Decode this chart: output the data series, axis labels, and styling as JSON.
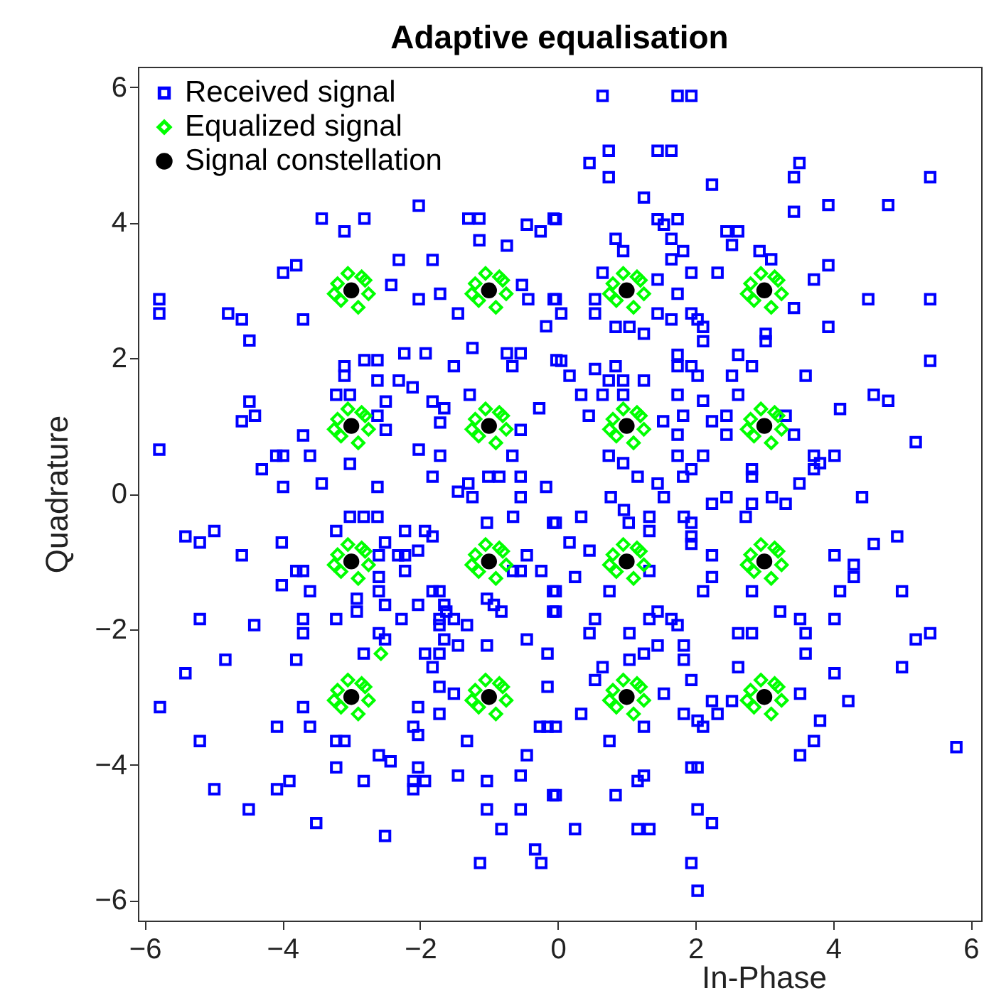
{
  "chart_data": {
    "type": "scatter",
    "title": "Adaptive equalisation",
    "xlabel": "In-Phase",
    "ylabel": "Quadrature",
    "xlim": [
      -6.1,
      6.15
    ],
    "ylim": [
      -6.3,
      6.3
    ],
    "xticks": [
      -6,
      -4,
      -2,
      0,
      2,
      4,
      6
    ],
    "yticks": [
      -6,
      -4,
      -2,
      0,
      2,
      4,
      6
    ],
    "grid": false,
    "legend": "top left",
    "series": [
      {
        "name": "Received signal",
        "color": "#0000ff",
        "marker": "square",
        "x": [
          -3.43,
          -2.81,
          -3.1,
          -2.02,
          -1.3,
          -1.14,
          -1.14,
          -0.74,
          -0.45,
          -0.25,
          -0.06,
          -3.99,
          -3.8,
          -2.31,
          -1.82,
          -5.79,
          -5.79,
          -4.79,
          -4.59,
          -3.7,
          -4.48,
          -2.42,
          -2.02,
          -1.71,
          -1.45,
          -0.43,
          -0.06,
          -0.17,
          -0.52,
          -2.23,
          -1.92,
          -1.24,
          -0.74,
          -0.54,
          -1.51,
          -0.66,
          -0.02,
          -3.1,
          -2.81,
          -2.62,
          -3.1,
          -2.62,
          -2.31,
          -2.11,
          -3.22,
          -3.02,
          -4.48,
          -2.5,
          -1.82,
          -1.65,
          -1.28,
          -0.27,
          -4.4,
          -4.59,
          -2.62,
          -2.5,
          -1.71,
          -3.7,
          -5.79,
          -4.09,
          -3.99,
          -3.6,
          -4.3,
          -3.02,
          -2.02,
          -1.71,
          -0.66,
          -0.54,
          -3.99,
          -3.43,
          -2.62,
          -1.82,
          -1.3,
          -1.01,
          -0.85,
          -0.54,
          -0.17,
          0.65,
          1.74,
          1.94,
          0.74,
          1.45,
          1.65,
          0.46,
          0.74,
          2.24,
          3.51,
          3.43,
          5.41,
          1.25,
          3.93,
          4.8,
          3.43,
          -0.03,
          1.45,
          1.74,
          1.54,
          2.45,
          2.62,
          0.84,
          1.65,
          2.53,
          0.95,
          1.82,
          2.93,
          3.1,
          1.65,
          3.93,
          0.65,
          1.94,
          2.32,
          3.72,
          1.45,
          -0.03,
          0.05,
          0.54,
          0.54,
          1.45,
          1.65,
          1.74,
          1.94,
          2.03,
          2.11,
          0.84,
          1.04,
          1.25,
          2.11,
          3.02,
          3.02,
          3.43,
          3.93,
          4.51,
          5.41,
          5.41,
          0.05,
          0.17,
          0.54,
          0.84,
          0.74,
          0.95,
          1.25,
          1.74,
          1.74,
          1.94,
          2.03,
          2.53,
          2.62,
          2.82,
          3.6,
          0.34,
          0.65,
          0.95,
          1.74,
          2.11,
          2.62,
          4.59,
          4.8,
          4.1,
          0.45,
          1.53,
          1.82,
          2.45,
          2.24,
          3.31,
          3.43,
          2.45,
          1.74,
          5.2,
          0.74,
          1.74,
          2.11,
          3.72,
          4.02,
          3.81,
          0.95,
          1.94,
          2.82,
          3.72,
          1.16,
          1.45,
          1.82,
          2.82,
          3.51,
          -5.41,
          -5.2,
          -4.99,
          -4.59,
          -4.01,
          -3.22,
          -3.02,
          -2.82,
          -2.62,
          -2.22,
          -1.93,
          -1.82,
          -1.03,
          -0.65,
          -0.54,
          -1.45,
          -1.24,
          -0.07,
          -2.51,
          -2.6,
          -2.32,
          -2.22,
          -2.03,
          -2.22,
          -0.45,
          -0.65,
          -0.54,
          -0.24,
          -3.8,
          -3.7,
          -4.01,
          -3.6,
          -2.6,
          -2.6,
          -2.92,
          -2.92,
          -2.51,
          -2.03,
          -1.82,
          -1.72,
          -1.65,
          -1.62,
          -2.27,
          -1.72,
          -1.51,
          -1.32,
          -1.72,
          -1.03,
          -0.93,
          -0.82,
          -0.07,
          -0.07,
          -5.2,
          -4.41,
          -3.7,
          -3.7,
          -3.22,
          -2.6,
          -2.51,
          -1.65,
          -1.45,
          -1.03,
          -0.45,
          -4.83,
          -3.8,
          -2.82,
          -1.93,
          -1.72,
          -1.82,
          -0.15,
          -5.41,
          -5.78,
          -3.7,
          -2.03,
          -1.72,
          -1.72,
          -1.51,
          -0.15,
          -4.08,
          -3.6,
          -2.1,
          -2.03,
          -1.32,
          -0.26,
          -0.15,
          -5.2,
          -3.22,
          -3.1,
          -2.6,
          -2.43,
          -3.22,
          -2.03,
          -0.45,
          -4.99,
          -4.08,
          -3.9,
          -2.82,
          -2.1,
          -1.93,
          -2.1,
          -1.45,
          -1.03,
          -0.54,
          -0.07,
          -4.49,
          -3.51,
          -2.51,
          -1.03,
          -0.54,
          -0.82,
          -0.33,
          -0.24,
          -1.13,
          0.77,
          1.54,
          2.24,
          2.45,
          2.82,
          3.11,
          3.31,
          4.42,
          -0.03,
          0.34,
          0.96,
          1.03,
          1.33,
          1.33,
          1.83,
          1.94,
          1.94,
          1.94,
          2.73,
          0.17,
          0.46,
          1.33,
          2.24,
          2.24,
          4.02,
          4.3,
          4.3,
          4.59,
          4.93,
          0.25,
          -0.03,
          0.75,
          2.11,
          2.82,
          4.1,
          5,
          -0.03,
          0.54,
          0.46,
          1.04,
          1.33,
          1.45,
          1.65,
          1.74,
          3.23,
          3.52,
          4.02,
          2.62,
          2.82,
          3.6,
          5.2,
          5.41,
          1.04,
          1.25,
          1.45,
          1.83,
          1.83,
          3.6,
          0.65,
          2.62,
          4.02,
          5,
          0.54,
          1.94,
          1.54,
          2.24,
          2.53,
          3.52,
          4.22,
          0.34,
          1.83,
          2.03,
          2.11,
          2.32,
          1.25,
          -0.03,
          0.75,
          3.81,
          3.72,
          3.52,
          5.79,
          1.94,
          2.03,
          1.25,
          1.16,
          -0.03,
          0.84,
          0.25,
          1.16,
          1.33,
          2.03,
          2.24,
          1.94,
          2.03
        ],
        "values": [
          4.06,
          4.06,
          3.87,
          4.25,
          4.06,
          4.06,
          3.74,
          3.66,
          3.97,
          3.87,
          4.06,
          3.26,
          3.37,
          3.45,
          3.45,
          2.87,
          2.66,
          2.66,
          2.57,
          2.57,
          2.26,
          3.08,
          2.87,
          2.95,
          2.66,
          2.87,
          2.87,
          2.47,
          3.08,
          2.07,
          2.07,
          2.15,
          2.07,
          2.07,
          1.88,
          1.88,
          1.97,
          1.88,
          1.97,
          1.97,
          1.74,
          1.67,
          1.67,
          1.57,
          1.46,
          1.46,
          1.36,
          1.36,
          1.36,
          1.26,
          1.46,
          1.26,
          1.15,
          1.07,
          1.15,
          0.94,
          1.05,
          0.86,
          0.65,
          0.56,
          0.56,
          0.56,
          0.36,
          0.44,
          0.65,
          0.56,
          0.56,
          0.94,
          0.1,
          0.15,
          0.1,
          0.25,
          0.15,
          0.25,
          0.25,
          0.25,
          0.1,
          5.87,
          5.87,
          5.87,
          5.06,
          5.06,
          5.06,
          4.88,
          4.67,
          4.56,
          4.88,
          4.67,
          4.67,
          4.37,
          4.26,
          4.26,
          4.16,
          4.05,
          4.05,
          4.05,
          3.97,
          3.87,
          3.87,
          3.76,
          3.76,
          3.67,
          3.58,
          3.58,
          3.58,
          3.46,
          3.46,
          3.37,
          3.26,
          3.26,
          3.26,
          3.16,
          3.16,
          2.87,
          2.66,
          2.87,
          2.66,
          2.66,
          2.57,
          2.95,
          2.66,
          2.57,
          2.46,
          2.46,
          2.46,
          2.36,
          2.25,
          2.36,
          2.25,
          2.74,
          2.46,
          2.87,
          2.87,
          1.96,
          1.96,
          1.74,
          1.84,
          1.88,
          1.67,
          1.67,
          1.67,
          2.05,
          1.88,
          1.88,
          1.74,
          1.74,
          2.05,
          1.88,
          1.74,
          1.46,
          1.46,
          1.46,
          1.46,
          1.37,
          1.46,
          1.46,
          1.37,
          1.25,
          1.15,
          1.07,
          1.15,
          1.15,
          1.07,
          1.15,
          0.87,
          0.87,
          0.87,
          0.76,
          0.56,
          0.56,
          0.56,
          0.56,
          0.56,
          0.45,
          0.45,
          0.36,
          0.36,
          0.36,
          0.25,
          0.15,
          0.25,
          0.25,
          0.15,
          -0.63,
          -0.72,
          -0.55,
          -0.91,
          -0.72,
          -0.55,
          -0.34,
          -0.34,
          -0.34,
          -0.55,
          -0.55,
          -0.63,
          -0.43,
          -0.34,
          -0.05,
          0.03,
          -0.05,
          -0.43,
          -0.72,
          -0.91,
          -0.91,
          -0.91,
          -0.84,
          -1.14,
          -0.91,
          -1.14,
          -1.14,
          -1.14,
          -1.14,
          -1.14,
          -1.35,
          -1.44,
          -1.23,
          -1.44,
          -1.55,
          -1.74,
          -1.64,
          -1.64,
          -1.44,
          -1.44,
          -1.64,
          -1.74,
          -1.85,
          -1.85,
          -1.85,
          -1.94,
          -1.94,
          -1.55,
          -1.64,
          -1.74,
          -1.44,
          -1.74,
          -1.85,
          -1.94,
          -1.85,
          -2.06,
          -1.85,
          -2.06,
          -2.15,
          -2.15,
          -2.24,
          -2.24,
          -2.15,
          -2.45,
          -2.45,
          -2.36,
          -2.36,
          -2.36,
          -2.56,
          -2.36,
          -2.65,
          -3.15,
          -3.15,
          -3.15,
          -3.25,
          -2.85,
          -2.95,
          -2.85,
          -3.44,
          -3.44,
          -3.44,
          -3.56,
          -3.65,
          -3.44,
          -3.44,
          -3.65,
          -3.65,
          -3.65,
          -3.86,
          -3.95,
          -4.04,
          -4.04,
          -3.86,
          -4.36,
          -4.36,
          -4.24,
          -4.24,
          -4.24,
          -4.24,
          -4.36,
          -4.16,
          -4.24,
          -4.16,
          -4.45,
          -4.66,
          -4.86,
          -5.05,
          -4.66,
          -4.66,
          -4.95,
          -5.25,
          -5.45,
          -5.45,
          -0.05,
          -0.05,
          -0.15,
          -0.05,
          -0.15,
          -0.05,
          -0.15,
          -0.05,
          -0.43,
          -0.34,
          -0.24,
          -0.43,
          -0.34,
          -0.55,
          -0.34,
          -0.43,
          -0.63,
          -0.74,
          -0.34,
          -0.72,
          -0.84,
          -1.14,
          -0.91,
          -1.23,
          -0.91,
          -1.05,
          -1.23,
          -0.74,
          -0.63,
          -1.23,
          -1.44,
          -1.44,
          -1.44,
          -1.44,
          -1.44,
          -1.44,
          -1.74,
          -1.85,
          -2.06,
          -2.06,
          -1.85,
          -1.74,
          -1.85,
          -1.94,
          -1.74,
          -1.85,
          -1.85,
          -2.06,
          -2.06,
          -2.06,
          -2.15,
          -2.06,
          -2.45,
          -2.36,
          -2.24,
          -2.24,
          -2.45,
          -2.36,
          -2.56,
          -2.56,
          -2.65,
          -2.56,
          -2.75,
          -2.75,
          -2.95,
          -3.06,
          -3.06,
          -2.95,
          -3.06,
          -3.25,
          -3.25,
          -3.35,
          -3.44,
          -3.25,
          -3.44,
          -3.44,
          -3.65,
          -3.35,
          -3.65,
          -3.86,
          -3.74,
          -4.04,
          -4.04,
          -4.16,
          -4.24,
          -4.45,
          -4.45,
          -4.95,
          -4.95,
          -4.95,
          -4.66,
          -4.86,
          -5.45,
          -5.86
        ]
      },
      {
        "name": "Equalized signal",
        "color": "#00ff00",
        "marker": "diamond",
        "x": [
          -2.85,
          -3.2,
          -2.9,
          -3.15,
          -2.75,
          -3.05,
          -2.8,
          -3.25,
          -0.85,
          -1.2,
          -0.9,
          -1.15,
          -0.75,
          -1.05,
          -0.8,
          -1.25,
          1.15,
          0.8,
          1.1,
          0.85,
          1.25,
          0.95,
          1.2,
          0.75,
          3.15,
          2.8,
          3.1,
          2.85,
          3.25,
          2.95,
          3.2,
          2.75,
          -2.85,
          -3.2,
          -2.9,
          -3.15,
          -2.75,
          -3.05,
          -2.8,
          -3.25,
          -0.85,
          -1.2,
          -0.9,
          -1.15,
          -0.75,
          -1.05,
          -0.8,
          -1.25,
          1.15,
          0.8,
          1.1,
          0.85,
          1.25,
          0.95,
          1.2,
          0.75,
          3.15,
          2.8,
          3.1,
          2.85,
          3.25,
          2.95,
          3.2,
          2.75,
          -2.85,
          -3.2,
          -2.9,
          -3.15,
          -2.75,
          -3.05,
          -2.8,
          -3.25,
          -0.85,
          -1.2,
          -0.9,
          -1.15,
          -0.75,
          -1.05,
          -0.8,
          -1.25,
          1.15,
          0.8,
          1.1,
          0.85,
          1.25,
          0.95,
          1.2,
          0.75,
          3.15,
          2.8,
          3.1,
          2.85,
          3.25,
          2.95,
          3.2,
          2.75,
          -2.85,
          -3.2,
          -2.9,
          -3.15,
          -2.75,
          -3.05,
          -2.8,
          -3.25,
          -0.85,
          -1.2,
          -0.9,
          -1.15,
          -0.75,
          -1.05,
          -0.8,
          -1.25,
          1.15,
          0.8,
          1.1,
          0.85,
          1.25,
          0.95,
          1.2,
          0.75,
          3.15,
          2.8,
          3.1,
          2.85,
          3.25,
          2.95,
          3.2,
          2.75,
          -2.57
        ],
        "values": [
          3.2,
          3.1,
          2.75,
          2.85,
          2.95,
          3.25,
          3.15,
          2.95,
          3.2,
          3.1,
          2.75,
          2.85,
          2.95,
          3.25,
          3.15,
          2.95,
          3.2,
          3.1,
          2.75,
          2.85,
          2.95,
          3.25,
          3.15,
          2.95,
          3.2,
          3.1,
          2.75,
          2.85,
          2.95,
          3.25,
          3.15,
          2.95,
          1.2,
          1.1,
          0.75,
          0.85,
          0.95,
          1.25,
          1.15,
          0.95,
          1.2,
          1.1,
          0.75,
          0.85,
          0.95,
          1.25,
          1.15,
          0.95,
          1.2,
          1.1,
          0.75,
          0.85,
          0.95,
          1.25,
          1.15,
          0.95,
          1.2,
          1.1,
          0.75,
          0.85,
          0.95,
          1.25,
          1.15,
          0.95,
          -0.8,
          -0.9,
          -1.25,
          -1.15,
          -1.05,
          -0.75,
          -0.85,
          -1.05,
          -0.8,
          -0.9,
          -1.25,
          -1.15,
          -1.05,
          -0.75,
          -0.85,
          -1.05,
          -0.8,
          -0.9,
          -1.25,
          -1.15,
          -1.05,
          -0.75,
          -0.85,
          -1.05,
          -0.8,
          -0.9,
          -1.25,
          -1.15,
          -1.05,
          -0.75,
          -0.85,
          -1.05,
          -2.8,
          -2.9,
          -3.25,
          -3.15,
          -3.05,
          -2.75,
          -2.85,
          -3.05,
          -2.8,
          -2.9,
          -3.25,
          -3.15,
          -3.05,
          -2.75,
          -2.85,
          -3.05,
          -2.8,
          -2.9,
          -3.25,
          -3.15,
          -3.05,
          -2.75,
          -2.85,
          -3.05,
          -2.8,
          -2.9,
          -3.25,
          -3.15,
          -3.05,
          -2.75,
          -2.85,
          -3.05,
          -2.36
        ]
      },
      {
        "name": "Signal constellation",
        "color": "#000000",
        "marker": "circle",
        "x": [
          -3,
          -1,
          1,
          3,
          -3,
          -1,
          1,
          3,
          -3,
          -1,
          1,
          3,
          -3,
          -1,
          1,
          3
        ],
        "values": [
          3,
          3,
          3,
          3,
          1,
          1,
          1,
          1,
          -1,
          -1,
          -1,
          -1,
          -3,
          -3,
          -3,
          -3
        ]
      }
    ]
  }
}
